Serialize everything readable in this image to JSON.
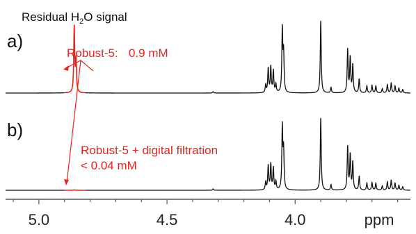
{
  "chart_data": {
    "type": "line",
    "x_axis": {
      "label": "ppm",
      "reversed": true,
      "xlim": [
        5.13,
        3.55
      ],
      "ticks": [
        5.0,
        4.5,
        4.0
      ],
      "tick_labels": [
        "5.0",
        "4.5",
        "4.0"
      ]
    },
    "grid": false,
    "annotations": {
      "top_label": "Residual H",
      "top_label_sub": "2",
      "top_label_mid": "O",
      "top_label_tail": " signal",
      "panel_a": "a)",
      "panel_b": "b)",
      "robust_a": "Robust-5:",
      "robust_a_value": "0.9 mM",
      "robust_b_line1": "Robust-5 + digital filtration",
      "robust_b_line2": "< 0.04 mM"
    },
    "colors": {
      "spectrum": "#111111",
      "highlight": "#e8221c"
    },
    "series": [
      {
        "panel": "a",
        "baseline": 0,
        "peaks": [
          {
            "ppm": 4.862,
            "height": 95,
            "color": "highlight"
          },
          {
            "ppm": 4.855,
            "height": 45,
            "color": "highlight"
          },
          {
            "ppm": 4.32,
            "height": 2
          },
          {
            "ppm": 4.115,
            "height": 11
          },
          {
            "ppm": 4.105,
            "height": 35
          },
          {
            "ppm": 4.095,
            "height": 37
          },
          {
            "ppm": 4.085,
            "height": 32
          },
          {
            "ppm": 4.075,
            "height": 12
          },
          {
            "ppm": 4.05,
            "height": 90
          },
          {
            "ppm": 4.045,
            "height": 55
          },
          {
            "ppm": 3.9,
            "height": 104
          },
          {
            "ppm": 3.86,
            "height": 8
          },
          {
            "ppm": 3.795,
            "height": 62
          },
          {
            "ppm": 3.785,
            "height": 50
          },
          {
            "ppm": 3.775,
            "height": 40
          },
          {
            "ppm": 3.75,
            "height": 20
          },
          {
            "ppm": 3.72,
            "height": 10
          },
          {
            "ppm": 3.7,
            "height": 11
          },
          {
            "ppm": 3.685,
            "height": 10
          },
          {
            "ppm": 3.66,
            "height": 6
          },
          {
            "ppm": 3.64,
            "height": 12
          },
          {
            "ppm": 3.625,
            "height": 14
          },
          {
            "ppm": 3.61,
            "height": 10
          },
          {
            "ppm": 3.595,
            "height": 7
          },
          {
            "ppm": 3.58,
            "height": 5
          }
        ]
      },
      {
        "panel": "b",
        "baseline": 0,
        "peaks": [
          {
            "ppm": 4.862,
            "height": 0.6,
            "color": "highlight"
          },
          {
            "ppm": 4.32,
            "height": 2
          },
          {
            "ppm": 4.115,
            "height": 11
          },
          {
            "ppm": 4.105,
            "height": 35
          },
          {
            "ppm": 4.095,
            "height": 37
          },
          {
            "ppm": 4.085,
            "height": 32
          },
          {
            "ppm": 4.075,
            "height": 12
          },
          {
            "ppm": 4.05,
            "height": 90
          },
          {
            "ppm": 4.045,
            "height": 55
          },
          {
            "ppm": 3.9,
            "height": 104
          },
          {
            "ppm": 3.86,
            "height": 8
          },
          {
            "ppm": 3.795,
            "height": 62
          },
          {
            "ppm": 3.785,
            "height": 50
          },
          {
            "ppm": 3.775,
            "height": 40
          },
          {
            "ppm": 3.75,
            "height": 20
          },
          {
            "ppm": 3.72,
            "height": 10
          },
          {
            "ppm": 3.7,
            "height": 11
          },
          {
            "ppm": 3.685,
            "height": 10
          },
          {
            "ppm": 3.66,
            "height": 6
          },
          {
            "ppm": 3.64,
            "height": 12
          },
          {
            "ppm": 3.625,
            "height": 14
          },
          {
            "ppm": 3.61,
            "height": 10
          },
          {
            "ppm": 3.595,
            "height": 7
          },
          {
            "ppm": 3.58,
            "height": 5
          }
        ]
      }
    ]
  }
}
